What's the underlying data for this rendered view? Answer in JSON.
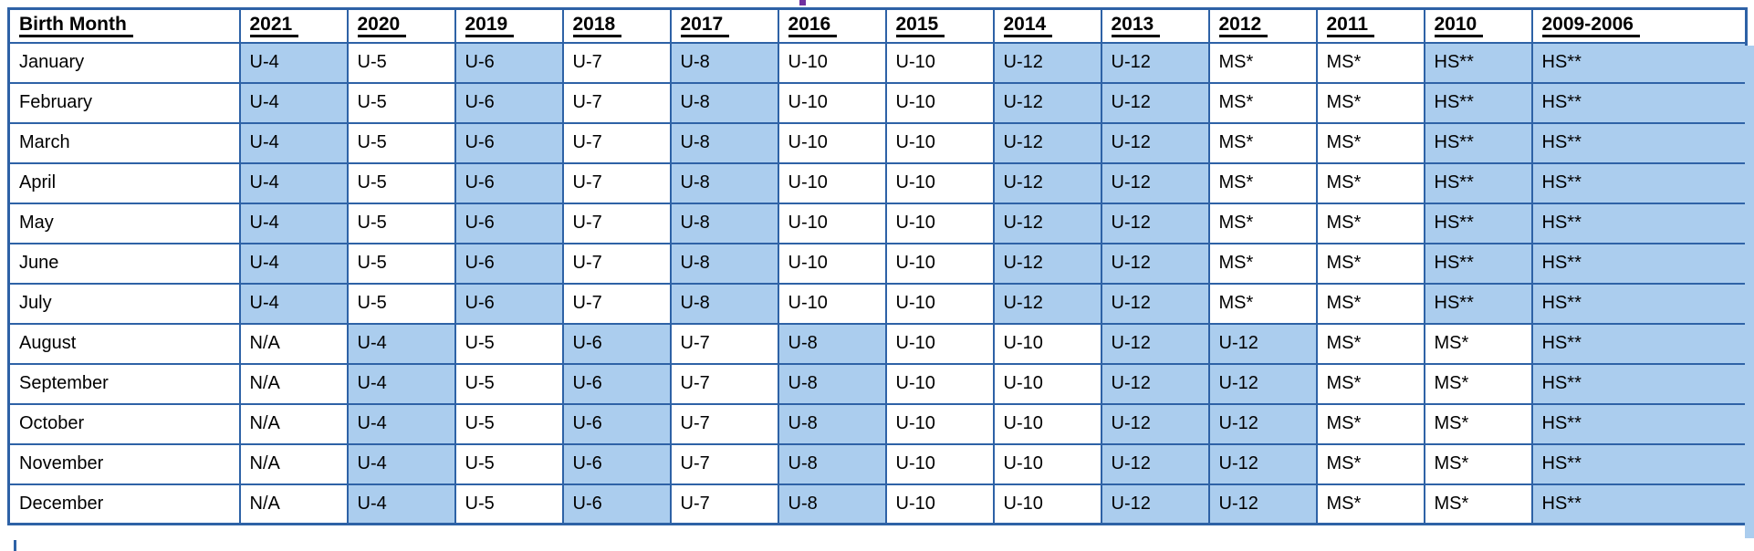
{
  "colors": {
    "background": "#FFFFFF",
    "border": "#2E62A6",
    "highlight": "#ABCDEE",
    "header_text": "#000000",
    "cell_text": "#000000",
    "title_fragment": "#7030A0"
  },
  "table": {
    "columns": [
      "Birth Month",
      "2021",
      "2020",
      "2019",
      "2018",
      "2017",
      "2016",
      "2015",
      "2014",
      "2013",
      "2012",
      "2011",
      "2010",
      "2009-2006"
    ],
    "rows": [
      {
        "month": "January",
        "cells": [
          {
            "v": "U-4",
            "hl": true
          },
          {
            "v": "U-5",
            "hl": false
          },
          {
            "v": "U-6",
            "hl": true
          },
          {
            "v": "U-7",
            "hl": false
          },
          {
            "v": "U-8",
            "hl": true
          },
          {
            "v": "U-10",
            "hl": false
          },
          {
            "v": "U-10",
            "hl": false
          },
          {
            "v": "U-12",
            "hl": true
          },
          {
            "v": "U-12",
            "hl": true
          },
          {
            "v": "MS*",
            "hl": false
          },
          {
            "v": "MS*",
            "hl": false
          },
          {
            "v": "HS**",
            "hl": true
          },
          {
            "v": "HS**",
            "hl": true
          }
        ]
      },
      {
        "month": "February",
        "cells": [
          {
            "v": "U-4",
            "hl": true
          },
          {
            "v": "U-5",
            "hl": false
          },
          {
            "v": "U-6",
            "hl": true
          },
          {
            "v": "U-7",
            "hl": false
          },
          {
            "v": "U-8",
            "hl": true
          },
          {
            "v": "U-10",
            "hl": false
          },
          {
            "v": "U-10",
            "hl": false
          },
          {
            "v": "U-12",
            "hl": true
          },
          {
            "v": "U-12",
            "hl": true
          },
          {
            "v": "MS*",
            "hl": false
          },
          {
            "v": "MS*",
            "hl": false
          },
          {
            "v": "HS**",
            "hl": true
          },
          {
            "v": "HS**",
            "hl": true
          }
        ]
      },
      {
        "month": "March",
        "cells": [
          {
            "v": "U-4",
            "hl": true
          },
          {
            "v": "U-5",
            "hl": false
          },
          {
            "v": "U-6",
            "hl": true
          },
          {
            "v": "U-7",
            "hl": false
          },
          {
            "v": "U-8",
            "hl": true
          },
          {
            "v": "U-10",
            "hl": false
          },
          {
            "v": "U-10",
            "hl": false
          },
          {
            "v": "U-12",
            "hl": true
          },
          {
            "v": "U-12",
            "hl": true
          },
          {
            "v": "MS*",
            "hl": false
          },
          {
            "v": "MS*",
            "hl": false
          },
          {
            "v": "HS**",
            "hl": true
          },
          {
            "v": "HS**",
            "hl": true
          }
        ]
      },
      {
        "month": "April",
        "cells": [
          {
            "v": "U-4",
            "hl": true
          },
          {
            "v": "U-5",
            "hl": false
          },
          {
            "v": "U-6",
            "hl": true
          },
          {
            "v": "U-7",
            "hl": false
          },
          {
            "v": "U-8",
            "hl": true
          },
          {
            "v": "U-10",
            "hl": false
          },
          {
            "v": "U-10",
            "hl": false
          },
          {
            "v": "U-12",
            "hl": true
          },
          {
            "v": "U-12",
            "hl": true
          },
          {
            "v": "MS*",
            "hl": false
          },
          {
            "v": "MS*",
            "hl": false
          },
          {
            "v": "HS**",
            "hl": true
          },
          {
            "v": "HS**",
            "hl": true
          }
        ]
      },
      {
        "month": "May",
        "cells": [
          {
            "v": "U-4",
            "hl": true
          },
          {
            "v": "U-5",
            "hl": false
          },
          {
            "v": "U-6",
            "hl": true
          },
          {
            "v": "U-7",
            "hl": false
          },
          {
            "v": "U-8",
            "hl": true
          },
          {
            "v": "U-10",
            "hl": false
          },
          {
            "v": "U-10",
            "hl": false
          },
          {
            "v": "U-12",
            "hl": true
          },
          {
            "v": "U-12",
            "hl": true
          },
          {
            "v": "MS*",
            "hl": false
          },
          {
            "v": "MS*",
            "hl": false
          },
          {
            "v": "HS**",
            "hl": true
          },
          {
            "v": "HS**",
            "hl": true
          }
        ]
      },
      {
        "month": "June",
        "cells": [
          {
            "v": "U-4",
            "hl": true
          },
          {
            "v": "U-5",
            "hl": false
          },
          {
            "v": "U-6",
            "hl": true
          },
          {
            "v": "U-7",
            "hl": false
          },
          {
            "v": "U-8",
            "hl": true
          },
          {
            "v": "U-10",
            "hl": false
          },
          {
            "v": "U-10",
            "hl": false
          },
          {
            "v": "U-12",
            "hl": true
          },
          {
            "v": "U-12",
            "hl": true
          },
          {
            "v": "MS*",
            "hl": false
          },
          {
            "v": "MS*",
            "hl": false
          },
          {
            "v": "HS**",
            "hl": true
          },
          {
            "v": "HS**",
            "hl": true
          }
        ]
      },
      {
        "month": "July",
        "cells": [
          {
            "v": "U-4",
            "hl": true
          },
          {
            "v": "U-5",
            "hl": false
          },
          {
            "v": "U-6",
            "hl": true
          },
          {
            "v": "U-7",
            "hl": false
          },
          {
            "v": "U-8",
            "hl": true
          },
          {
            "v": "U-10",
            "hl": false
          },
          {
            "v": "U-10",
            "hl": false
          },
          {
            "v": "U-12",
            "hl": true
          },
          {
            "v": "U-12",
            "hl": true
          },
          {
            "v": "MS*",
            "hl": false
          },
          {
            "v": "MS*",
            "hl": false
          },
          {
            "v": "HS**",
            "hl": true
          },
          {
            "v": "HS**",
            "hl": true
          }
        ]
      },
      {
        "month": "August",
        "cells": [
          {
            "v": "N/A",
            "hl": false
          },
          {
            "v": "U-4",
            "hl": true
          },
          {
            "v": "U-5",
            "hl": false
          },
          {
            "v": "U-6",
            "hl": true
          },
          {
            "v": "U-7",
            "hl": false
          },
          {
            "v": "U-8",
            "hl": true
          },
          {
            "v": "U-10",
            "hl": false
          },
          {
            "v": "U-10",
            "hl": false
          },
          {
            "v": "U-12",
            "hl": true
          },
          {
            "v": "U-12",
            "hl": true
          },
          {
            "v": "MS*",
            "hl": false
          },
          {
            "v": "MS*",
            "hl": false
          },
          {
            "v": "HS**",
            "hl": true
          }
        ]
      },
      {
        "month": "September",
        "cells": [
          {
            "v": "N/A",
            "hl": false
          },
          {
            "v": "U-4",
            "hl": true
          },
          {
            "v": "U-5",
            "hl": false
          },
          {
            "v": "U-6",
            "hl": true
          },
          {
            "v": "U-7",
            "hl": false
          },
          {
            "v": "U-8",
            "hl": true
          },
          {
            "v": "U-10",
            "hl": false
          },
          {
            "v": "U-10",
            "hl": false
          },
          {
            "v": "U-12",
            "hl": true
          },
          {
            "v": "U-12",
            "hl": true
          },
          {
            "v": "MS*",
            "hl": false
          },
          {
            "v": "MS*",
            "hl": false
          },
          {
            "v": "HS**",
            "hl": true
          }
        ]
      },
      {
        "month": "October",
        "cells": [
          {
            "v": "N/A",
            "hl": false
          },
          {
            "v": "U-4",
            "hl": true
          },
          {
            "v": "U-5",
            "hl": false
          },
          {
            "v": "U-6",
            "hl": true
          },
          {
            "v": "U-7",
            "hl": false
          },
          {
            "v": "U-8",
            "hl": true
          },
          {
            "v": "U-10",
            "hl": false
          },
          {
            "v": "U-10",
            "hl": false
          },
          {
            "v": "U-12",
            "hl": true
          },
          {
            "v": "U-12",
            "hl": true
          },
          {
            "v": "MS*",
            "hl": false
          },
          {
            "v": "MS*",
            "hl": false
          },
          {
            "v": "HS**",
            "hl": true
          }
        ]
      },
      {
        "month": "November",
        "cells": [
          {
            "v": "N/A",
            "hl": false
          },
          {
            "v": "U-4",
            "hl": true
          },
          {
            "v": "U-5",
            "hl": false
          },
          {
            "v": "U-6",
            "hl": true
          },
          {
            "v": "U-7",
            "hl": false
          },
          {
            "v": "U-8",
            "hl": true
          },
          {
            "v": "U-10",
            "hl": false
          },
          {
            "v": "U-10",
            "hl": false
          },
          {
            "v": "U-12",
            "hl": true
          },
          {
            "v": "U-12",
            "hl": true
          },
          {
            "v": "MS*",
            "hl": false
          },
          {
            "v": "MS*",
            "hl": false
          },
          {
            "v": "HS**",
            "hl": true
          }
        ]
      },
      {
        "month": "December",
        "cells": [
          {
            "v": "N/A",
            "hl": false
          },
          {
            "v": "U-4",
            "hl": true
          },
          {
            "v": "U-5",
            "hl": false
          },
          {
            "v": "U-6",
            "hl": true
          },
          {
            "v": "U-7",
            "hl": false
          },
          {
            "v": "U-8",
            "hl": true
          },
          {
            "v": "U-10",
            "hl": false
          },
          {
            "v": "U-10",
            "hl": false
          },
          {
            "v": "U-12",
            "hl": true
          },
          {
            "v": "U-12",
            "hl": true
          },
          {
            "v": "MS*",
            "hl": false
          },
          {
            "v": "MS*",
            "hl": false
          },
          {
            "v": "HS**",
            "hl": true
          }
        ]
      }
    ]
  }
}
